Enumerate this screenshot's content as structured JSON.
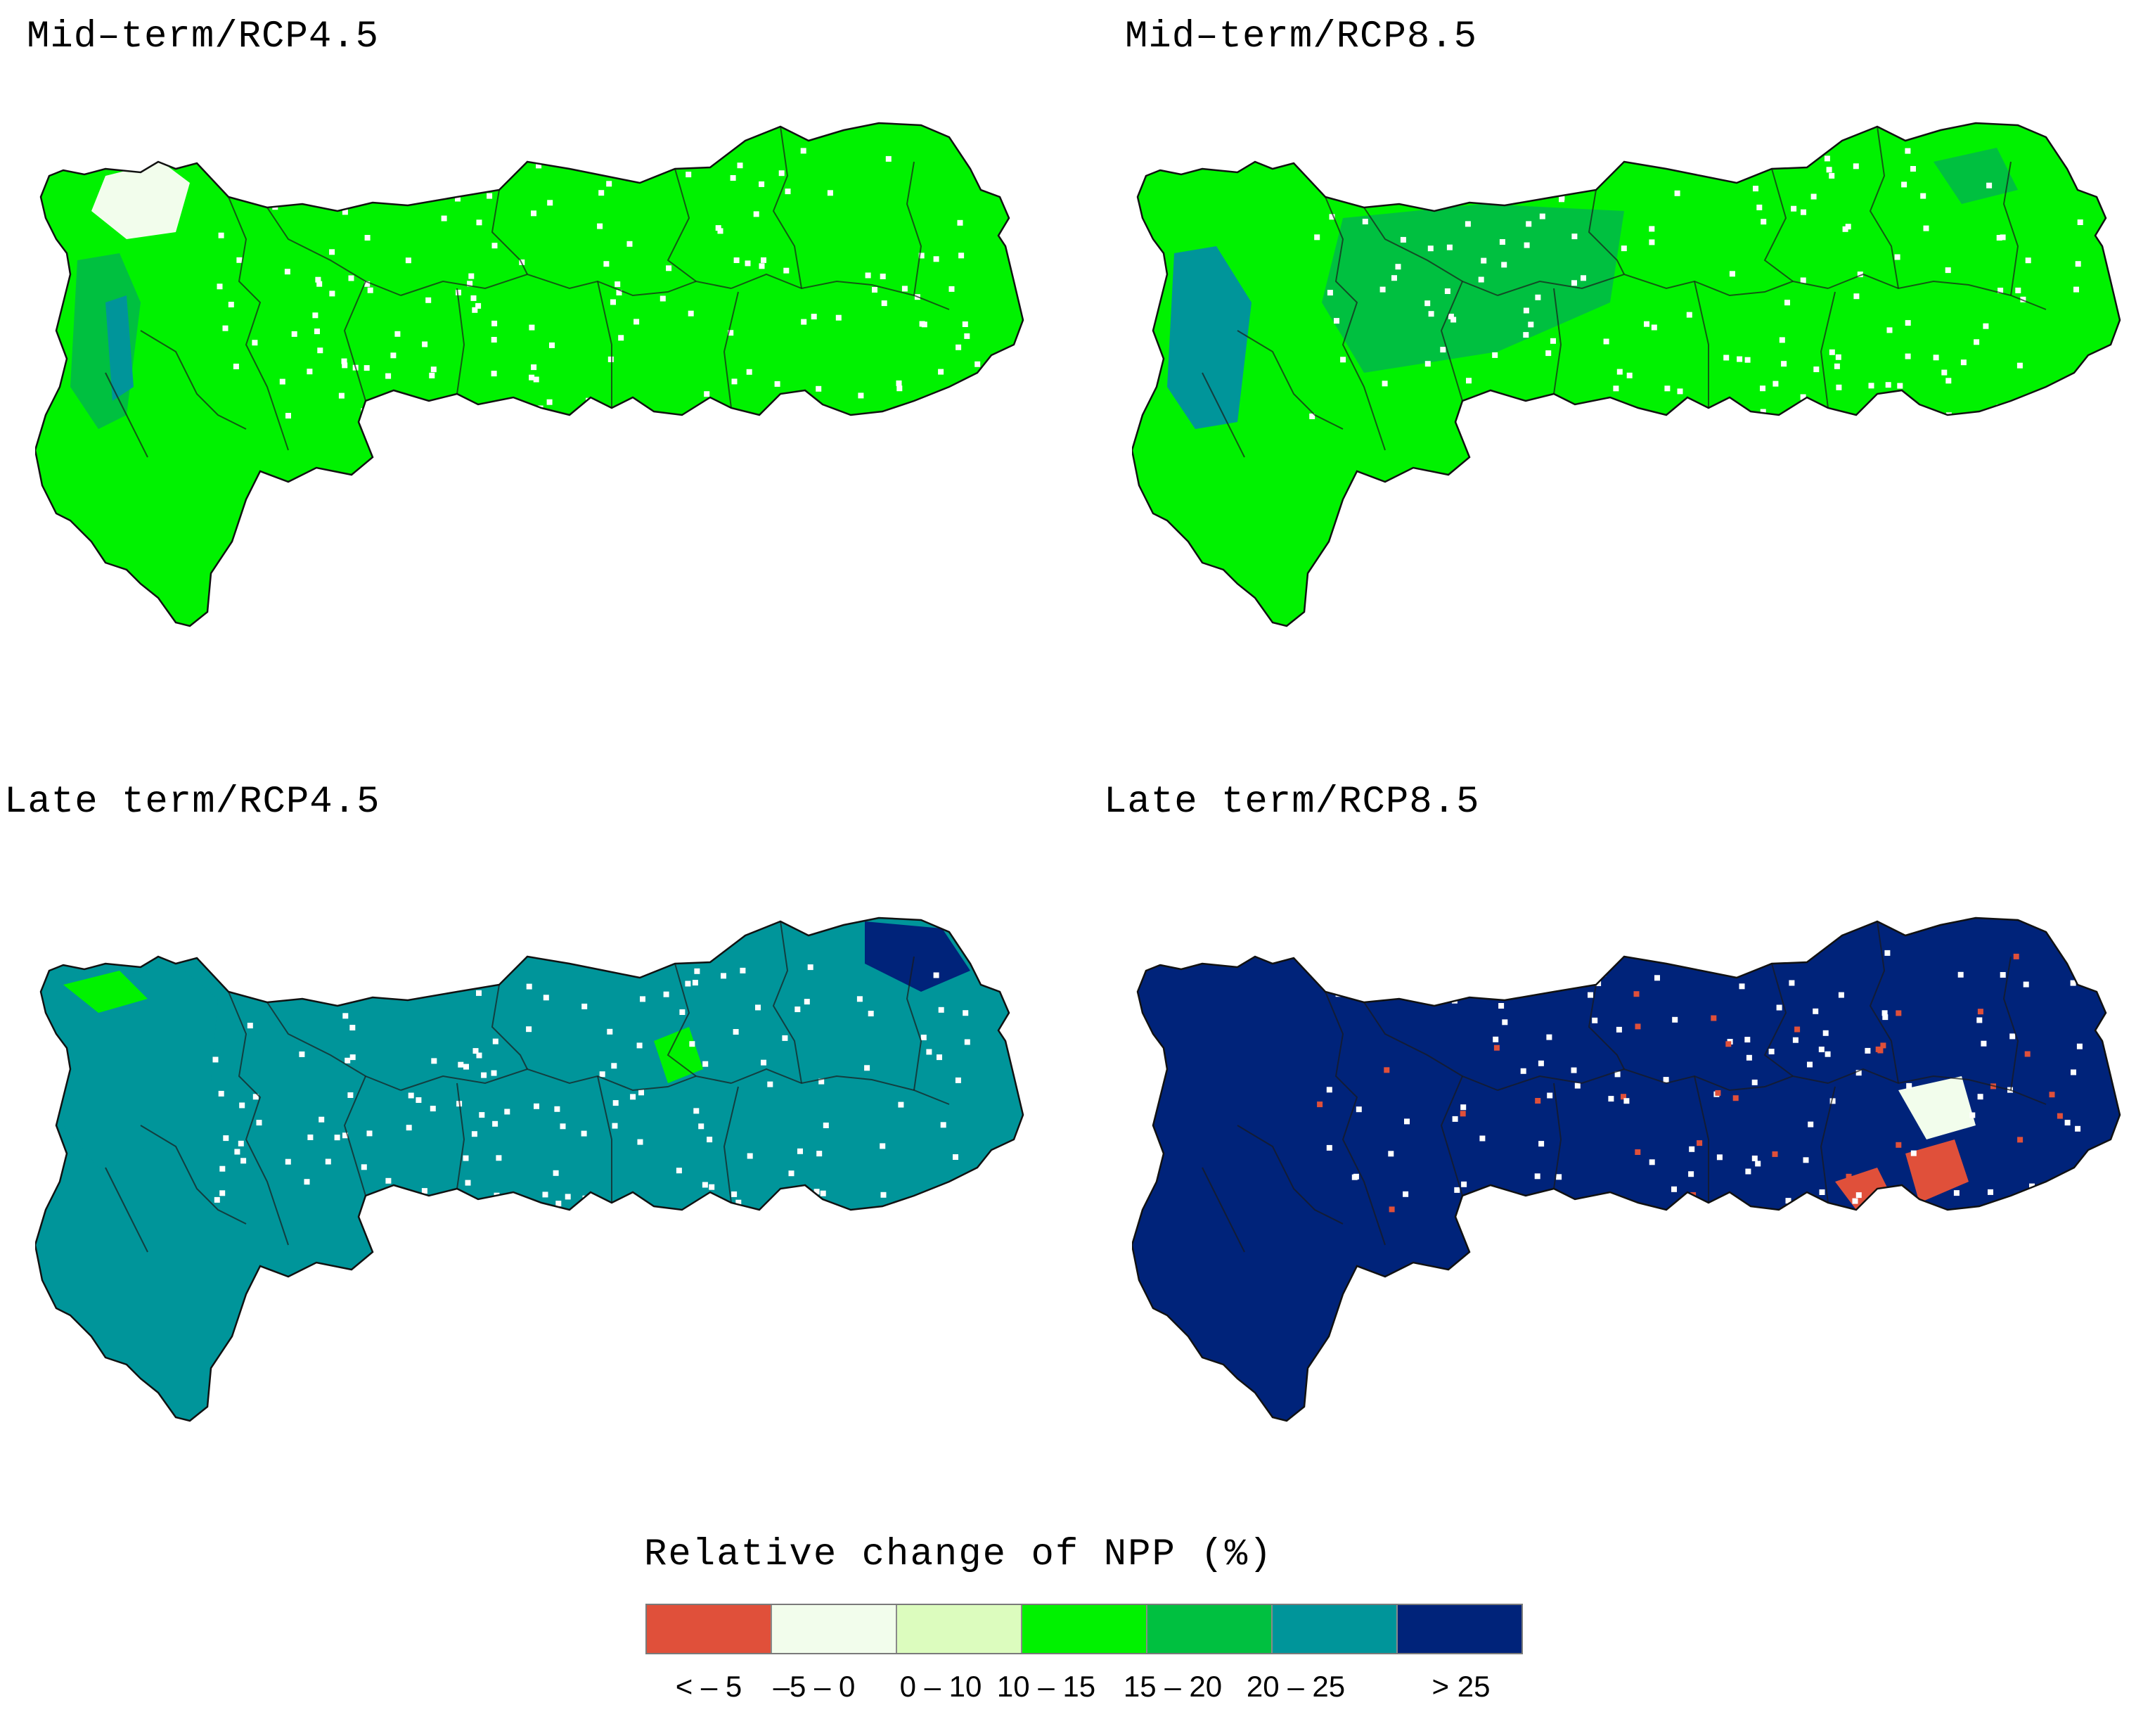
{
  "panels": [
    {
      "title": "Mid–term/RCP4.5",
      "dominant_class": "10 – 15"
    },
    {
      "title": "Mid–term/RCP8.5",
      "dominant_class": "10 – 15"
    },
    {
      "title": "Late term/RCP4.5",
      "dominant_class": "20 – 25"
    },
    {
      "title": "Late term/RCP8.5",
      "dominant_class": "> 25"
    }
  ],
  "legend": {
    "title": "Relative change of NPP (%)",
    "classes": [
      {
        "label": "< – 5",
        "color": "#e0503a"
      },
      {
        "label": "–5 – 0",
        "color": "#f2fdec"
      },
      {
        "label": "0 – 10",
        "color": "#dcfcbe"
      },
      {
        "label": "10 – 15",
        "color": "#00f200"
      },
      {
        "label": "15 – 20",
        "color": "#00c040"
      },
      {
        "label": "20 – 25",
        "color": "#00959a"
      },
      {
        "label": "> 25",
        "color": "#00237a"
      }
    ]
  }
}
